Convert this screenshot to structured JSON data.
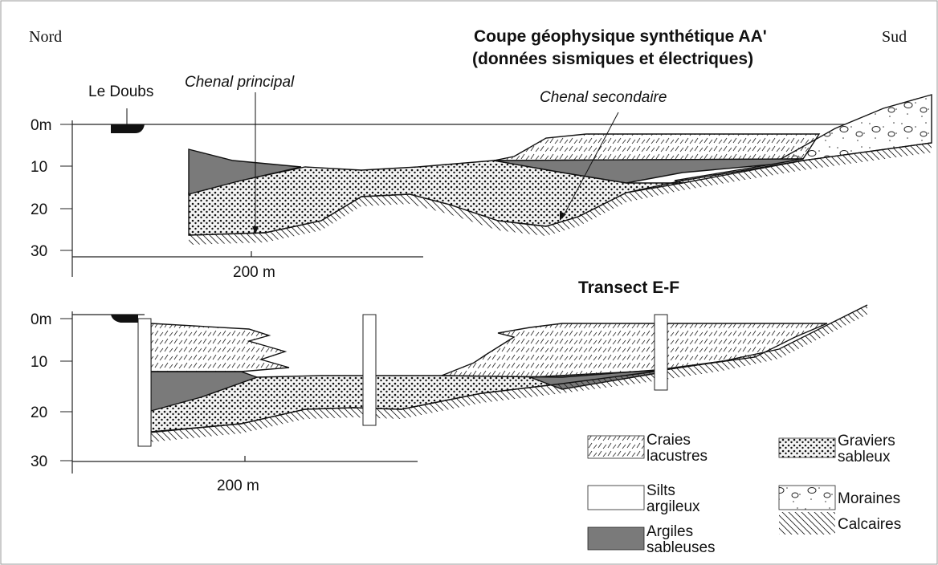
{
  "header": {
    "north": "Nord",
    "south": "Sud",
    "title_line1": "Coupe géophysique synthétique AA'",
    "title_line2": "(données sismiques et électriques)"
  },
  "section_top": {
    "river": "Le Doubs",
    "main_channel": "Chenal principal",
    "secondary_channel": "Chenal secondaire",
    "depth_labels": [
      "0m",
      "10",
      "20",
      "30"
    ],
    "scale": "200 m"
  },
  "section_bottom": {
    "title": "Transect E-F",
    "depth_labels": [
      "0m",
      "10",
      "20",
      "30"
    ],
    "scale": "200 m"
  },
  "legend": [
    {
      "lines": [
        "Craies",
        "lacustres"
      ]
    },
    {
      "lines": [
        "Silts",
        "argileux"
      ]
    },
    {
      "lines": [
        "Argiles",
        "sableuses"
      ]
    },
    {
      "lines": [
        "Graviers",
        "sableux"
      ]
    },
    {
      "lines": [
        "Moraines"
      ]
    },
    {
      "lines": [
        "Calcaires"
      ]
    }
  ]
}
